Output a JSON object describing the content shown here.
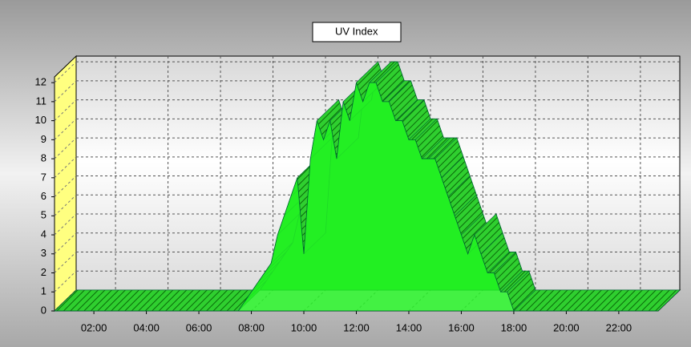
{
  "chart_data": {
    "type": "area3d",
    "legend": "top",
    "grid": true,
    "series": [
      {
        "name": "UV Index",
        "color": "#22ee22",
        "x": [
          0.5,
          7.5,
          7.75,
          8,
          8.25,
          8.5,
          8.75,
          9,
          9.25,
          9.5,
          9.75,
          10,
          10.25,
          10.5,
          10.75,
          11,
          11.25,
          11.5,
          11.75,
          12,
          12.25,
          12.5,
          12.75,
          13,
          13.25,
          13.5,
          13.75,
          14,
          14.25,
          14.5,
          14.75,
          15,
          15.25,
          15.5,
          15.75,
          16,
          16.25,
          16.5,
          16.75,
          17,
          17.25,
          17.5,
          17.75,
          18,
          23.5
        ],
        "values": [
          0,
          0,
          0.5,
          1,
          1.5,
          2,
          2.5,
          4,
          5,
          6,
          7,
          3,
          8,
          10,
          9,
          10,
          8,
          11,
          10,
          12,
          11,
          12,
          12,
          11,
          11,
          10,
          10,
          9,
          9,
          8,
          8,
          8,
          7,
          6,
          5,
          4,
          3,
          4,
          3,
          2,
          2,
          1,
          1,
          0,
          0
        ]
      }
    ],
    "xlim": [
      0.5,
      23.5
    ],
    "xticks": [
      {
        "value": 2,
        "label": "02:00"
      },
      {
        "value": 4,
        "label": "04:00"
      },
      {
        "value": 6,
        "label": "06:00"
      },
      {
        "value": 8,
        "label": "08:00"
      },
      {
        "value": 10,
        "label": "10:00"
      },
      {
        "value": 12,
        "label": "12:00"
      },
      {
        "value": 14,
        "label": "14:00"
      },
      {
        "value": 16,
        "label": "16:00"
      },
      {
        "value": 18,
        "label": "18:00"
      },
      {
        "value": 20,
        "label": "20:00"
      },
      {
        "value": 22,
        "label": "22:00"
      }
    ],
    "ylim": [
      0,
      12.3
    ],
    "yticks": [
      0,
      1,
      2,
      3,
      4,
      5,
      6,
      7,
      8,
      9,
      10,
      11,
      12
    ]
  }
}
